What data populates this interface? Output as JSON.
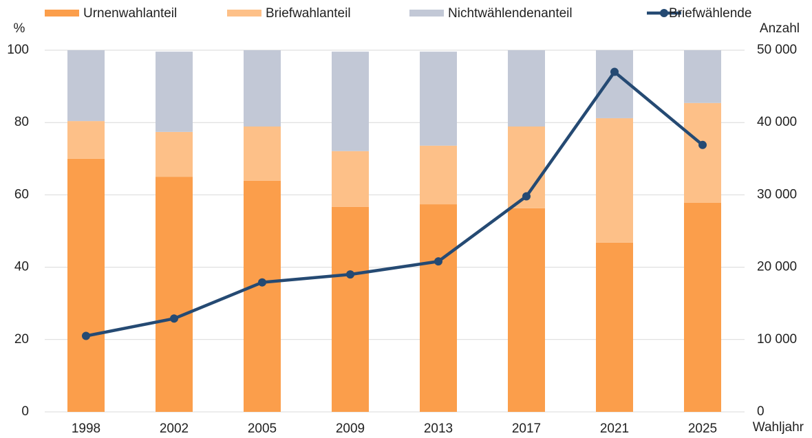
{
  "chart_data": {
    "type": "bar",
    "categories": [
      "1998",
      "2002",
      "2005",
      "2009",
      "2013",
      "2017",
      "2021",
      "2025"
    ],
    "series": [
      {
        "name": "Urnenwahlanteil",
        "color": "#fb9e4b",
        "values": [
          70.0,
          65.0,
          63.9,
          56.7,
          57.4,
          56.3,
          46.8,
          57.8
        ]
      },
      {
        "name": "Briefwahlanteil",
        "color": "#fdc088",
        "values": [
          10.4,
          12.4,
          15.0,
          15.4,
          16.2,
          22.6,
          34.4,
          27.6
        ]
      },
      {
        "name": "Nichtwählendenanteil",
        "color": "#c2c8d6",
        "values": [
          19.6,
          22.2,
          21.1,
          27.5,
          26.0,
          21.1,
          18.8,
          14.6
        ]
      },
      {
        "name": "Briefwählende",
        "color": "#254a73",
        "type": "line",
        "axis": "y2",
        "values": [
          10500,
          12900,
          17900,
          19000,
          20800,
          29800,
          47000,
          36900
        ]
      }
    ],
    "ylabel": "%",
    "y2label": "Anzahl",
    "xlabel": "Wahljahr",
    "ylim": [
      0,
      100
    ],
    "yticks": [
      0,
      20,
      40,
      60,
      80,
      100
    ],
    "y2lim": [
      0,
      50000
    ],
    "y2ticks": [
      0,
      {
        "value": 10000,
        "label": "10 000"
      },
      {
        "value": 20000,
        "label": "20 000"
      },
      {
        "value": 30000,
        "label": "30 000"
      },
      {
        "value": 40000,
        "label": "40 000"
      },
      {
        "value": 50000,
        "label": "50 000"
      }
    ],
    "grid": true,
    "stacked": true,
    "legend": "top"
  }
}
